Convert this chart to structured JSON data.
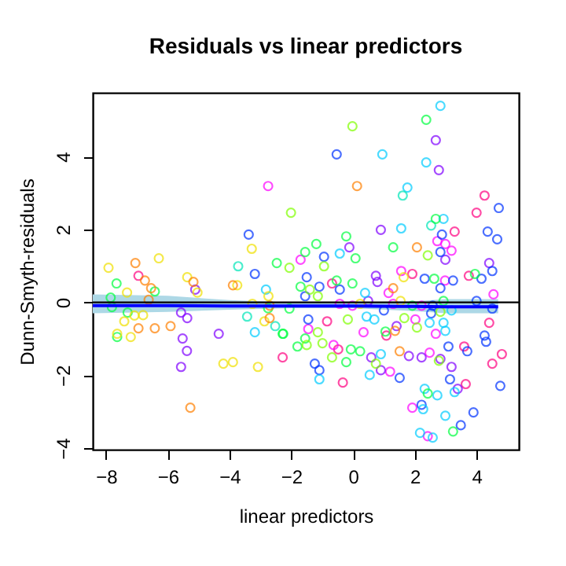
{
  "chart_data": {
    "type": "scatter",
    "title": "Residuals vs linear predictors",
    "xlabel": "linear predictors",
    "ylabel": "Dunn-Smyth-residuals",
    "xlim": [
      -8.43,
      5.37
    ],
    "ylim": [
      -4.04,
      5.75
    ],
    "xticks": [
      -8,
      -6,
      -4,
      -2,
      0,
      2,
      4
    ],
    "yticks": [
      -4,
      -2,
      0,
      2,
      4
    ],
    "grid": false,
    "marker": "circle",
    "ref_lines": [
      {
        "axis": "y",
        "value": 0,
        "color": "#000000"
      }
    ],
    "series": [
      {
        "color": "#ff0080",
        "x": [
          -6.95,
          4.26,
          4.0,
          3.29,
          1.92,
          3.75,
          -0.68,
          4.41,
          4.82,
          4.51,
          3.65,
          3.6,
          -0.33,
          -0.48,
          -0.84,
          1.08,
          -2.28
        ],
        "values": [
          0.73,
          2.93,
          2.46,
          1.94,
          0.78,
          0.73,
          0.52,
          -0.56,
          -1.42,
          -1.68,
          -2.24,
          -1.21,
          -2.2,
          -1.29,
          -0.52,
          -0.91,
          -1.51
        ]
      },
      {
        "color": "#ff00ff",
        "x": [
          -2.75,
          2.73,
          2.99,
          3.19,
          -1.7,
          1.56,
          2.98,
          1.15,
          4.55,
          -0.43,
          -0.02,
          1.3,
          2.22,
          2.42,
          1.92,
          2.48,
          1.2,
          -0.63,
          -1.45,
          0.34,
          2.68,
          2.02
        ],
        "values": [
          3.19,
          1.68,
          1.6,
          1.42,
          1.17,
          0.86,
          0.6,
          0.26,
          0.22,
          -0.04,
          -0.09,
          -0.04,
          -0.09,
          -3.67,
          -2.89,
          -1.38,
          -1.9,
          -1.17,
          -0.73,
          -0.82,
          -0.86,
          -0.47
        ]
      },
      {
        "color": "#8000ff",
        "x": [
          -5.11,
          -5.57,
          -5.37,
          -5.52,
          -5.38,
          -5.57,
          -4.35,
          2.68,
          2.78,
          0.9,
          -0.12,
          2.99,
          4.41,
          0.74,
          0.79,
          0.49,
          3.39,
          3.19,
          2.83,
          2.22,
          1.81,
          0.9,
          0.59,
          1.41
        ],
        "values": [
          0.35,
          -0.28,
          -0.43,
          -0.99,
          -1.33,
          -1.77,
          -0.86,
          4.45,
          3.63,
          1.99,
          1.51,
          1.17,
          1.08,
          0.73,
          0.56,
          0.04,
          -2.37,
          -1.77,
          -1.55,
          -1.51,
          -1.47,
          -1.86,
          -1.51,
          -0.65
        ]
      },
      {
        "color": "#0033ff",
        "x": [
          -3.38,
          -3.18,
          -0.53,
          4.72,
          2.88,
          4.36,
          4.67,
          -0.94,
          2.83,
          4.51,
          4.16,
          3.24,
          2.32,
          -1.5,
          -1.09,
          -0.43,
          2.83,
          4.0,
          4.51,
          -1.55,
          1.0,
          2.58,
          2.53,
          4.26,
          4.31,
          4.77,
          3.9,
          3.49,
          2.22,
          3.14,
          3.7,
          3.09,
          1.51,
          -1.09,
          -1.24,
          -1.45
        ],
        "values": [
          1.86,
          0.78,
          4.06,
          2.59,
          1.86,
          1.94,
          1.73,
          1.25,
          1.38,
          0.86,
          0.65,
          0.6,
          0.65,
          0.69,
          0.43,
          0.35,
          0.39,
          0.04,
          -0.17,
          0.17,
          -0.22,
          -0.09,
          -0.3,
          -0.91,
          -1.08,
          -2.29,
          -3.02,
          -3.37,
          -2.81,
          -2.11,
          -1.34,
          -1.21,
          -2.07,
          -1.86,
          -1.68,
          -0.47
        ]
      },
      {
        "color": "#00ccff",
        "x": [
          -2.82,
          -3.18,
          2.83,
          0.95,
          2.37,
          1.76,
          2.93,
          1.56,
          -0.43,
          0.39,
          3.19,
          2.99,
          2.58,
          2.17,
          2.27,
          2.73,
          2.32,
          3.29,
          0.54,
          -1.09,
          0.9,
          0.44,
          0.69,
          2.99,
          2.48,
          2.93
        ],
        "values": [
          0.35,
          -0.82,
          5.39,
          4.06,
          3.84,
          3.15,
          2.29,
          2.03,
          1.34,
          0.26,
          -0.22,
          -3.11,
          -3.71,
          -3.58,
          -2.93,
          -2.55,
          -2.37,
          -2.46,
          -1.99,
          -2.11,
          -1.42,
          -0.39,
          -0.47,
          -0.78,
          -0.56,
          -0.56
        ]
      },
      {
        "color": "#00e6b8",
        "x": [
          -3.72,
          -3.43,
          -2.52,
          1.61,
          2.53
        ],
        "values": [
          0.99,
          -0.39,
          -0.65,
          2.93,
          2.11
        ]
      },
      {
        "color": "#00ff40",
        "x": [
          -2.47,
          -7.66,
          -6.42,
          -7.85,
          -7.81,
          -7.3,
          -7.64,
          -2.75,
          -2.28,
          2.37,
          2.68,
          -0.22,
          1.3,
          -1.19,
          -1.55,
          0.08,
          3.95,
          2.63,
          -0.53,
          -0.02,
          -1.7,
          -2.06,
          1.92,
          2.93,
          3.24,
          2.42,
          -0.22,
          0.23,
          -0.07,
          -1.8,
          -1.55,
          -2.26,
          1.05
        ],
        "values": [
          1.08,
          0.52,
          0.3,
          0.13,
          -0.13,
          -0.28,
          -0.95,
          -0.16,
          -0.86,
          5.01,
          2.29,
          1.81,
          1.51,
          1.6,
          1.38,
          1.21,
          0.78,
          0.65,
          0.6,
          0.52,
          0.43,
          -0.17,
          -0.09,
          0.04,
          -3.54,
          -2.5,
          -1.64,
          -1.34,
          -1.29,
          -1.21,
          -0.99,
          -0.86,
          -0.8
        ]
      },
      {
        "color": "#80ff00",
        "x": [
          -0.02,
          -2.01,
          2.42,
          -2.06,
          -0.94,
          -1.4,
          -1.14,
          2.83,
          -0.68,
          0.74,
          -0.99,
          -1.5,
          -1.14,
          -0.17,
          2.07,
          2.78,
          1.66
        ],
        "values": [
          4.83,
          2.46,
          1.29,
          0.95,
          0.99,
          0.35,
          0.17,
          -0.26,
          -1.51,
          -1.68,
          -1.12,
          -1.17,
          -0.82,
          -0.47,
          -0.69,
          -1.6,
          -0.43
        ]
      },
      {
        "color": "#f0e000",
        "x": [
          -3.28,
          -7.92,
          -6.29,
          -5.37,
          -3.75,
          -7.32,
          -5.04,
          -7.41,
          -7.08,
          -6.8,
          -7.64,
          -7.2,
          -4.2,
          -3.89,
          -3.08,
          -2.87,
          -2.74,
          -3.26,
          1.64,
          0.23,
          1.54
        ],
        "values": [
          1.47,
          0.95,
          1.21,
          0.69,
          0.47,
          0.27,
          0.27,
          -0.52,
          -0.36,
          -0.35,
          -0.86,
          -0.95,
          -1.68,
          -1.64,
          -1.77,
          -0.52,
          0.17,
          -0.04,
          0.69,
          -0.04,
          0.04
        ]
      },
      {
        "color": "#ff8000",
        "x": [
          -7.05,
          -6.74,
          -5.17,
          -6.54,
          -3.89,
          -6.62,
          -6.95,
          -6.42,
          -5.91,
          -5.27,
          -2.7,
          -2.7,
          0.13,
          2.07,
          1.3,
          1.51,
          1.36
        ],
        "values": [
          1.08,
          0.6,
          0.56,
          0.39,
          0.47,
          0.07,
          -0.71,
          -0.71,
          -0.65,
          -2.89,
          -0.43,
          -0.09,
          3.19,
          1.51,
          0.39,
          -1.34,
          -0.78
        ]
      },
      {
        "type": "line",
        "marker": "none",
        "line_style": "solid",
        "color": "#0000ff",
        "x": [
          -8.43,
          -6,
          -4,
          -2,
          0,
          2,
          3,
          4.7
        ],
        "values": [
          -0.09,
          -0.09,
          -0.1,
          -0.1,
          -0.1,
          -0.11,
          -0.12,
          -0.12
        ],
        "lower": [
          -0.3,
          -0.26,
          -0.2,
          -0.16,
          -0.16,
          -0.24,
          -0.3,
          -0.3
        ],
        "upper": [
          0.22,
          0.18,
          0.06,
          0.0,
          0.0,
          0.03,
          0.09,
          0.09
        ]
      }
    ]
  }
}
